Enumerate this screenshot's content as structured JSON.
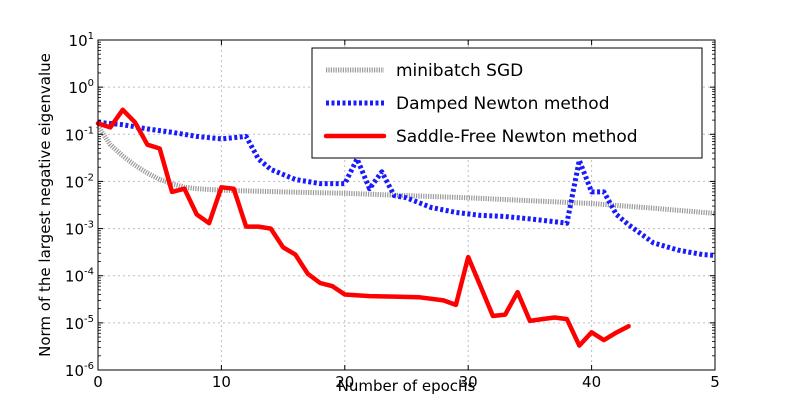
{
  "chart_data": {
    "type": "line",
    "xlabel": "Number of epochs",
    "ylabel": "Norm of the largest negative eigenvalue",
    "yscale": "log",
    "xlim": [
      0,
      50
    ],
    "ylim": [
      1e-06,
      10
    ],
    "x_ticks": [
      "0",
      "10",
      "20",
      "30",
      "40",
      "5"
    ],
    "y_ticks": [
      {
        "base": "10",
        "exp": "-6"
      },
      {
        "base": "10",
        "exp": "-5"
      },
      {
        "base": "10",
        "exp": "-4"
      },
      {
        "base": "10",
        "exp": "-3"
      },
      {
        "base": "10",
        "exp": "-2"
      },
      {
        "base": "10",
        "exp": "-1"
      },
      {
        "base": "10",
        "exp": "0"
      },
      {
        "base": "10",
        "exp": "1"
      }
    ],
    "grid": true,
    "legend_position": "top-right",
    "series": [
      {
        "name": "minibatch SGD",
        "style": "gray",
        "color": "#9a9a9a",
        "x": [
          0,
          1,
          2,
          3,
          4,
          5,
          6,
          7,
          8,
          10,
          15,
          20,
          25,
          30,
          35,
          40,
          45,
          50
        ],
        "y": [
          0.15,
          0.06,
          0.035,
          0.022,
          0.015,
          0.011,
          0.009,
          0.0075,
          0.007,
          0.0065,
          0.006,
          0.0056,
          0.005,
          0.0045,
          0.0039,
          0.0034,
          0.0027,
          0.0021
        ]
      },
      {
        "name": "Damped Newton method",
        "style": "dotted",
        "color": "#1a1aff",
        "x": [
          0,
          2,
          4,
          6,
          8,
          10,
          12,
          13,
          14,
          15,
          16,
          18,
          20,
          21,
          22,
          23,
          24,
          25,
          27,
          29,
          31,
          33,
          35,
          37,
          38,
          39,
          40,
          41,
          42,
          43,
          45,
          47,
          49,
          50
        ],
        "y": [
          0.18,
          0.16,
          0.13,
          0.11,
          0.09,
          0.08,
          0.09,
          0.03,
          0.018,
          0.014,
          0.011,
          0.009,
          0.009,
          0.03,
          0.007,
          0.016,
          0.005,
          0.0045,
          0.0028,
          0.0022,
          0.0019,
          0.0018,
          0.0016,
          0.0014,
          0.0013,
          0.028,
          0.006,
          0.006,
          0.002,
          0.0012,
          0.0005,
          0.00035,
          0.00028,
          0.00027
        ]
      },
      {
        "name": "Saddle-Free Newton method",
        "style": "solid",
        "color": "#ff0000",
        "x": [
          0,
          1,
          2,
          3,
          4,
          5,
          6,
          7,
          8,
          9,
          10,
          11,
          12,
          13,
          14,
          15,
          16,
          17,
          18,
          19,
          20,
          22,
          24,
          26,
          28,
          29,
          30,
          31,
          32,
          33,
          34,
          35,
          36,
          37,
          38,
          39,
          40,
          41,
          42,
          43
        ],
        "y": [
          0.17,
          0.14,
          0.33,
          0.18,
          0.06,
          0.05,
          0.006,
          0.007,
          0.002,
          0.0013,
          0.0075,
          0.007,
          0.0011,
          0.0011,
          0.001,
          0.0004,
          0.00028,
          0.00011,
          7e-05,
          6e-05,
          4e-05,
          3.7e-05,
          3.6e-05,
          3.5e-05,
          3e-05,
          2.4e-05,
          0.00025,
          6e-05,
          1.4e-05,
          1.5e-05,
          4.5e-05,
          1.1e-05,
          1.2e-05,
          1.3e-05,
          1.2e-05,
          3.3e-06,
          6.3e-06,
          4.3e-06,
          6.2e-06,
          8.5e-06
        ]
      }
    ]
  }
}
